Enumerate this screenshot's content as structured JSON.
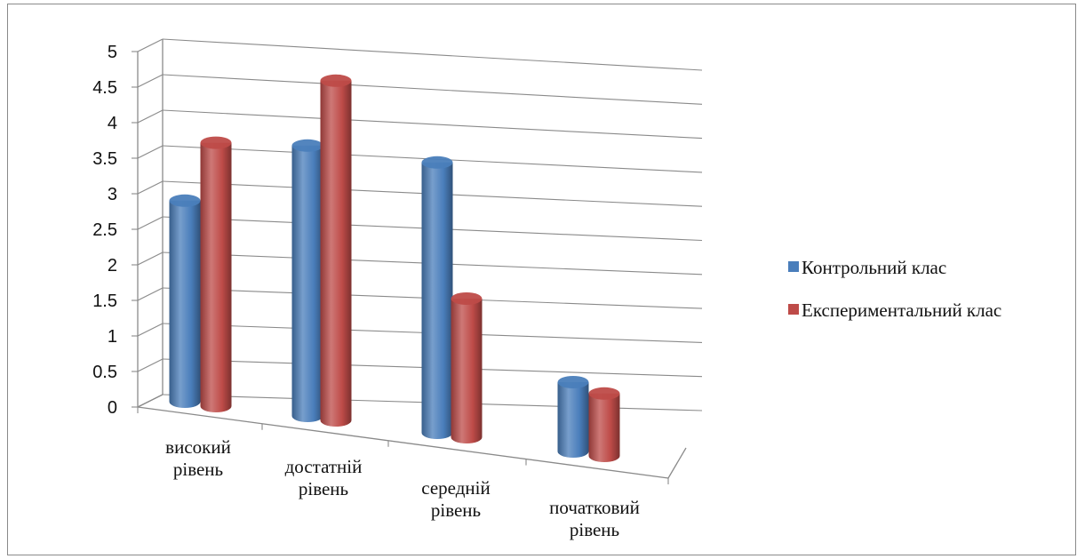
{
  "chart_data": {
    "type": "bar",
    "title": "",
    "xlabel": "",
    "ylabel": "",
    "ylim": [
      0,
      5
    ],
    "yticks": [
      "0",
      "0.5",
      "1",
      "1.5",
      "2",
      "2.5",
      "3",
      "3.5",
      "4",
      "4.5",
      "5"
    ],
    "categories": [
      [
        "високий",
        "рівень"
      ],
      [
        "достатній",
        "рівень"
      ],
      [
        "середній",
        "рівень"
      ],
      [
        "початковий",
        "рівень"
      ]
    ],
    "series": [
      {
        "name": "Контрольний клас",
        "values": [
          2.9,
          3.9,
          3.9,
          1.0
        ],
        "color": "#4a7ebb"
      },
      {
        "name": "Експериментальний клас",
        "values": [
          3.8,
          4.9,
          2.0,
          0.9
        ],
        "color": "#be4b48"
      }
    ],
    "grid": true,
    "legend_position": "right",
    "style": "3d-cylinder"
  }
}
